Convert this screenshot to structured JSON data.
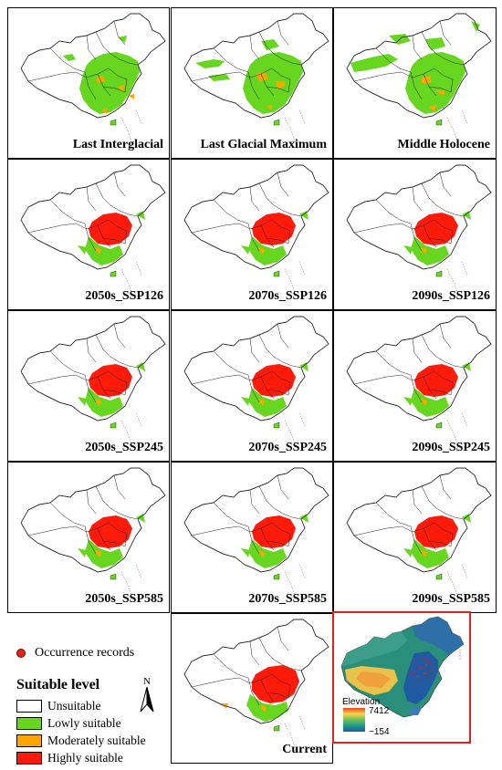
{
  "panels": [
    {
      "label": "Last Interglacial",
      "suitability": "lig"
    },
    {
      "label": "Last Glacial Maximum",
      "suitability": "lgm"
    },
    {
      "label": "Middle Holocene",
      "suitability": "mh"
    },
    {
      "label": "2050s_SSP126",
      "suitability": "future"
    },
    {
      "label": "2070s_SSP126",
      "suitability": "future"
    },
    {
      "label": "2090s_SSP126",
      "suitability": "future"
    },
    {
      "label": "2050s_SSP245",
      "suitability": "future"
    },
    {
      "label": "2070s_SSP245",
      "suitability": "future"
    },
    {
      "label": "2090s_SSP245",
      "suitability": "future"
    },
    {
      "label": "2050s_SSP585",
      "suitability": "future"
    },
    {
      "label": "2070s_SSP585",
      "suitability": "future"
    },
    {
      "label": "2090s_SSP585",
      "suitability": "future"
    },
    {
      "label": "Current",
      "suitability": "current"
    }
  ],
  "legend": {
    "occurrence_label": "Occurrence records",
    "title": "Suitable level",
    "north_label": "N",
    "items": [
      {
        "label": "Unsuitable",
        "color": "#ffffff"
      },
      {
        "label": "Lowly suitable",
        "color": "#66d61f"
      },
      {
        "label": "Moderately suitable",
        "color": "#ffa500"
      },
      {
        "label": "Highly suitable",
        "color": "#ff1a0a"
      }
    ]
  },
  "elevation_inset": {
    "title": "Elevation",
    "max_label": "7412",
    "min_label": "−154",
    "frame_color": "#e2231a"
  }
}
